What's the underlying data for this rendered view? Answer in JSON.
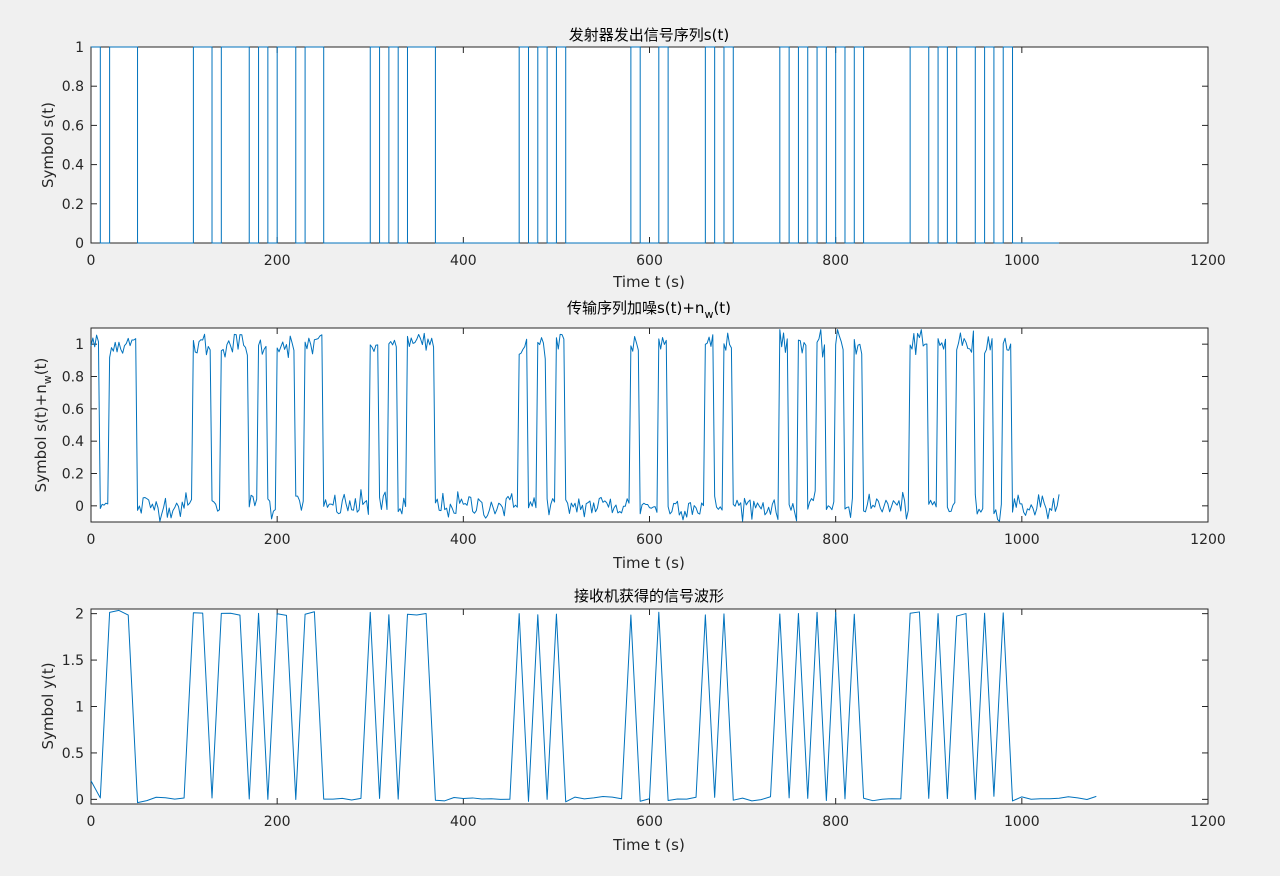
{
  "figure": {
    "background": "#f0f0f0",
    "line_color": "#0072bd"
  },
  "chart_data": [
    {
      "type": "line",
      "title": "发射器发出信号序列s(t)",
      "xlabel": "Time t (s)",
      "ylabel": "Symbol s(t)",
      "xlim": [
        0,
        1200
      ],
      "ylim": [
        0,
        1
      ],
      "xticks": [
        0,
        200,
        400,
        600,
        800,
        1000,
        1200
      ],
      "xtick_labels": [
        "0",
        "200",
        "400",
        "600",
        "800",
        "1000",
        "1200"
      ],
      "yticks": [
        0,
        0.2,
        0.4,
        0.6,
        0.8,
        1
      ],
      "ytick_labels": [
        "0",
        "0.2",
        "0.4",
        "0.6",
        "0.8",
        "1"
      ],
      "style": "step",
      "series": [
        {
          "x_start": 0,
          "x_end": 1040,
          "bit_period": 10,
          "bits": [
            1,
            0,
            1,
            1,
            1,
            0,
            0,
            0,
            0,
            0,
            0,
            1,
            1,
            0,
            1,
            1,
            1,
            0,
            1,
            0,
            1,
            1,
            0,
            1,
            1,
            0,
            0,
            0,
            0,
            0,
            1,
            0,
            1,
            0,
            1,
            1,
            1,
            0,
            0,
            0,
            0,
            0,
            0,
            0,
            0,
            0,
            1,
            0,
            1,
            0,
            1,
            0,
            0,
            0,
            0,
            0,
            0,
            0,
            1,
            0,
            0,
            1,
            0,
            0,
            0,
            0,
            1,
            0,
            1,
            0,
            0,
            0,
            0,
            0,
            1,
            0,
            1,
            0,
            1,
            0,
            1,
            0,
            1,
            0,
            0,
            0,
            0,
            0,
            1,
            1,
            0,
            1,
            0,
            1,
            1,
            0,
            1,
            0,
            1,
            0,
            0,
            0,
            0,
            0
          ]
        }
      ]
    },
    {
      "type": "line",
      "title": "传输序列加噪s(t)+n",
      "title_sub": "w",
      "title_tail": "(t)",
      "xlabel": "Time t (s)",
      "ylabel": "Symbol s(t)+n",
      "ylabel_sub": "w",
      "ylabel_tail": "(t)",
      "xlim": [
        0,
        1200
      ],
      "ylim": [
        -0.1,
        1.1
      ],
      "xticks": [
        0,
        200,
        400,
        600,
        800,
        1000,
        1200
      ],
      "xtick_labels": [
        "0",
        "200",
        "400",
        "600",
        "800",
        "1000",
        "1200"
      ],
      "yticks": [
        0,
        0.2,
        0.4,
        0.6,
        0.8,
        1
      ],
      "ytick_labels": [
        "0",
        "0.2",
        "0.4",
        "0.6",
        "0.8",
        "1"
      ],
      "noise_amplitude": 0.04,
      "series": [
        {
          "description": "s(t) with additive white noise, sampled every 2 s over 0–1040 s"
        }
      ]
    },
    {
      "type": "line",
      "title": "接收机获得的信号波形",
      "xlabel": "Time t (s)",
      "ylabel": "Symbol y(t)",
      "xlim": [
        0,
        1200
      ],
      "ylim": [
        -0.05,
        2.05
      ],
      "xticks": [
        0,
        200,
        400,
        600,
        800,
        1000,
        1200
      ],
      "xtick_labels": [
        "0",
        "200",
        "400",
        "600",
        "800",
        "1000",
        "1200"
      ],
      "yticks": [
        0,
        0.5,
        1,
        1.5,
        2
      ],
      "ytick_labels": [
        "0",
        "0.5",
        "1",
        "1.5",
        "2"
      ],
      "series": [
        {
          "description": "received waveform, peaks near 2 for each transmitted 1, sampled every 10 s over 0–1080 s"
        }
      ]
    }
  ]
}
